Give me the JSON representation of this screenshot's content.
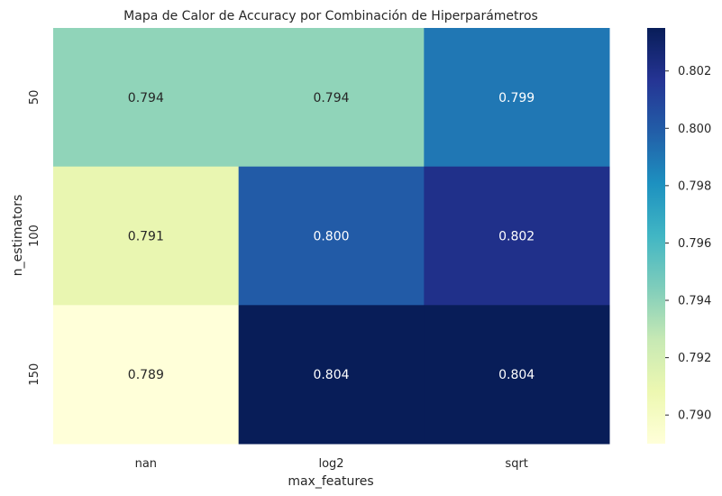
{
  "chart_data": {
    "type": "heatmap",
    "title": "Mapa de Calor de Accuracy por Combinación de Hiperparámetros",
    "xlabel": "max_features",
    "ylabel": "n_estimators",
    "x_categories": [
      "nan",
      "log2",
      "sqrt"
    ],
    "y_categories": [
      "50",
      "100",
      "150"
    ],
    "values": [
      [
        0.794,
        0.794,
        0.799
      ],
      [
        0.791,
        0.8,
        0.802
      ],
      [
        0.789,
        0.804,
        0.804
      ]
    ],
    "value_labels": [
      [
        "0.794",
        "0.794",
        "0.799"
      ],
      [
        "0.791",
        "0.800",
        "0.802"
      ],
      [
        "0.789",
        "0.804",
        "0.804"
      ]
    ],
    "colormap": "YlGnBu",
    "colorbar": {
      "min": 0.789,
      "max": 0.8035,
      "ticks": [
        "0.790",
        "0.792",
        "0.794",
        "0.796",
        "0.798",
        "0.800",
        "0.802"
      ]
    },
    "colors": {
      "ylgnbu": [
        "#ffffd9",
        "#edf8b1",
        "#c7e9b4",
        "#7fcdbb",
        "#41b6c4",
        "#1d91c0",
        "#225ea8",
        "#253494",
        "#081d58"
      ]
    }
  }
}
